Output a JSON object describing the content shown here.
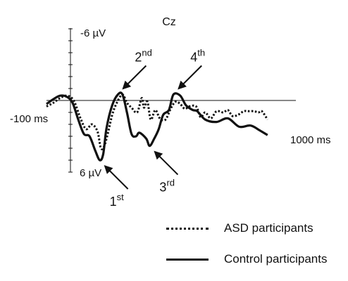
{
  "chart_data": {
    "type": "line",
    "channel": "Cz",
    "x_unit": "ms",
    "x_range": [
      -100,
      1000
    ],
    "y_range": [
      -6,
      6
    ],
    "y_inverted": true,
    "axis_labels": {
      "x_start": "-100 ms",
      "x_end": "1000 ms",
      "y_top": "-6 µV",
      "y_bottom": "6 µV"
    },
    "series": [
      {
        "name": "ASD participants",
        "style": "dotted",
        "color": "#111111",
        "points": [
          [
            -100,
            0.5
          ],
          [
            -70,
            0.2
          ],
          [
            -40,
            -0.2
          ],
          [
            -10,
            -0.4
          ],
          [
            20,
            0.0
          ],
          [
            50,
            1.5
          ],
          [
            75,
            2.4
          ],
          [
            100,
            2.0
          ],
          [
            125,
            2.6
          ],
          [
            140,
            4.0
          ],
          [
            155,
            3.8
          ],
          [
            170,
            2.8
          ],
          [
            190,
            1.2
          ],
          [
            210,
            0.2
          ],
          [
            235,
            -0.5
          ],
          [
            255,
            0.2
          ],
          [
            275,
            0.6
          ],
          [
            300,
            1.0
          ],
          [
            320,
            -0.2
          ],
          [
            330,
            0.6
          ],
          [
            345,
            0.1
          ],
          [
            360,
            1.6
          ],
          [
            380,
            0.8
          ],
          [
            400,
            1.5
          ],
          [
            425,
            1.6
          ],
          [
            450,
            0.6
          ],
          [
            470,
            0.1
          ],
          [
            490,
            0.3
          ],
          [
            510,
            0.7
          ],
          [
            530,
            0.5
          ],
          [
            560,
            0.5
          ],
          [
            580,
            1.4
          ],
          [
            600,
            1.0
          ],
          [
            625,
            1.5
          ],
          [
            650,
            0.9
          ],
          [
            680,
            1.0
          ],
          [
            700,
            0.8
          ],
          [
            720,
            1.3
          ],
          [
            745,
            1.2
          ],
          [
            770,
            0.9
          ],
          [
            790,
            0.9
          ],
          [
            815,
            0.9
          ],
          [
            835,
            1.0
          ],
          [
            850,
            0.9
          ],
          [
            875,
            1.6
          ]
        ]
      },
      {
        "name": "Control participants",
        "style": "solid",
        "color": "#111111",
        "points": [
          [
            -100,
            0.3
          ],
          [
            -70,
            -0.1
          ],
          [
            -40,
            -0.4
          ],
          [
            -10,
            -0.3
          ],
          [
            15,
            0.2
          ],
          [
            40,
            1.6
          ],
          [
            65,
            2.8
          ],
          [
            90,
            3.0
          ],
          [
            115,
            4.2
          ],
          [
            135,
            5.0
          ],
          [
            150,
            4.5
          ],
          [
            165,
            2.3
          ],
          [
            190,
            0.4
          ],
          [
            215,
            -0.5
          ],
          [
            235,
            -0.5
          ],
          [
            255,
            1.0
          ],
          [
            275,
            2.8
          ],
          [
            295,
            3.0
          ],
          [
            310,
            2.7
          ],
          [
            340,
            3.2
          ],
          [
            355,
            3.8
          ],
          [
            375,
            3.2
          ],
          [
            395,
            2.4
          ],
          [
            415,
            1.2
          ],
          [
            440,
            0.8
          ],
          [
            460,
            -0.5
          ],
          [
            490,
            -0.4
          ],
          [
            515,
            0.4
          ],
          [
            545,
            0.8
          ],
          [
            565,
            0.9
          ],
          [
            600,
            1.6
          ],
          [
            650,
            1.8
          ],
          [
            700,
            1.5
          ],
          [
            750,
            2.2
          ],
          [
            800,
            2.1
          ],
          [
            840,
            2.5
          ],
          [
            875,
            2.9
          ]
        ]
      }
    ],
    "annotations": [
      {
        "label": "1",
        "sup": "st",
        "x": 135,
        "y": 5.0,
        "from": "lower-right"
      },
      {
        "label": "2",
        "sup": "nd",
        "x": 215,
        "y": -0.5,
        "from": "upper-right"
      },
      {
        "label": "3",
        "sup": "rd",
        "x": 355,
        "y": 3.8,
        "from": "lower-right"
      },
      {
        "label": "4",
        "sup": "th",
        "x": 460,
        "y": -0.5,
        "from": "upper-right"
      }
    ],
    "legend_position": "bottom-right",
    "grid": false
  },
  "legend": {
    "asd": "ASD participants",
    "control": "Control participants"
  }
}
